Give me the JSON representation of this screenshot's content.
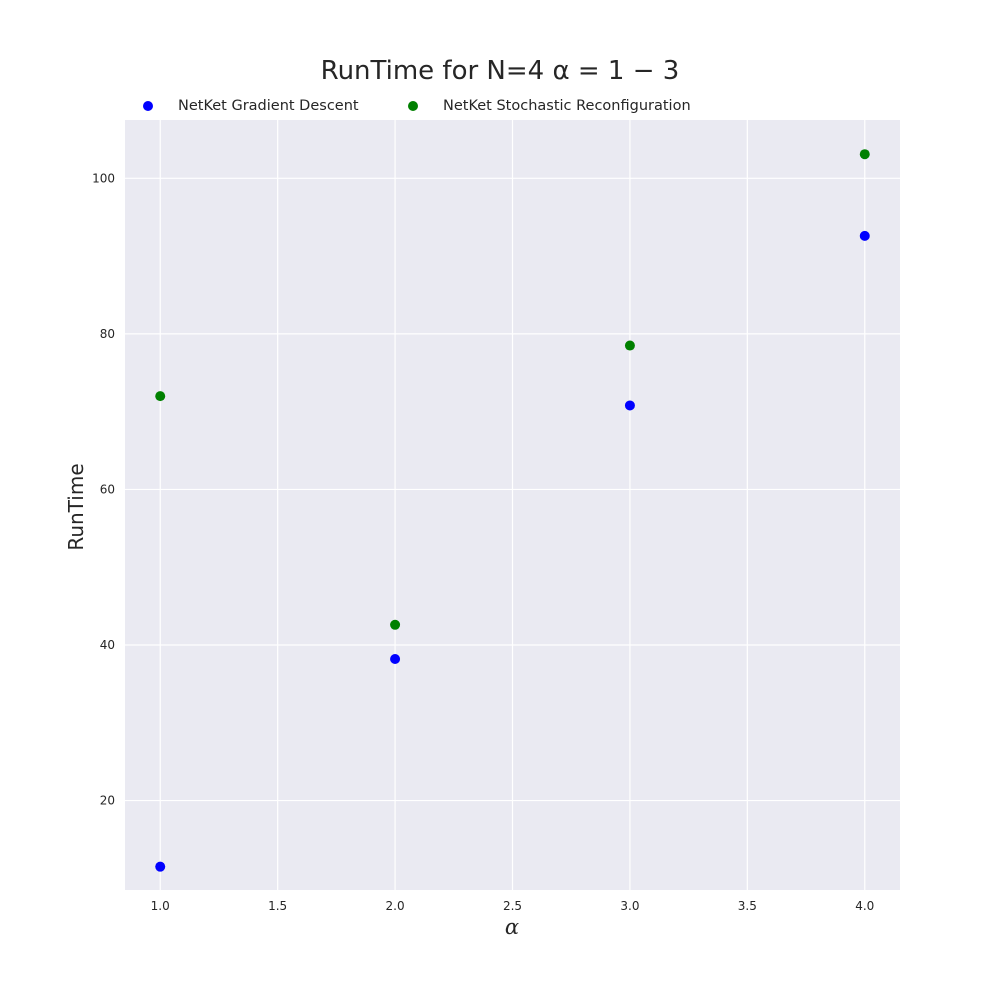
{
  "chart_data": {
    "type": "scatter",
    "title": "RunTime for N=4 α = 1 − 3",
    "xlabel": "α",
    "ylabel": "RunTime",
    "xlim": [
      0.85,
      4.15
    ],
    "ylim": [
      8.5,
      107.5
    ],
    "xticks": [
      1.0,
      1.5,
      2.0,
      2.5,
      3.0,
      3.5,
      4.0
    ],
    "xtick_labels": [
      "1.0",
      "1.5",
      "2.0",
      "2.5",
      "3.0",
      "3.5",
      "4.0"
    ],
    "yticks": [
      20,
      40,
      60,
      80,
      100
    ],
    "ytick_labels": [
      "20",
      "40",
      "60",
      "80",
      "100"
    ],
    "grid": true,
    "background": "#eaeaf2",
    "legend_position": "top",
    "series": [
      {
        "name": "NetKet Gradient Descent",
        "color": "#0000ff",
        "x": [
          1.0,
          2.0,
          3.0,
          4.0
        ],
        "y": [
          11.5,
          38.2,
          70.8,
          92.6
        ]
      },
      {
        "name": "NetKet Stochastic Reconfiguration",
        "color": "#008000",
        "x": [
          1.0,
          2.0,
          3.0,
          4.0
        ],
        "y": [
          72.0,
          42.6,
          78.5,
          103.1
        ]
      }
    ]
  }
}
